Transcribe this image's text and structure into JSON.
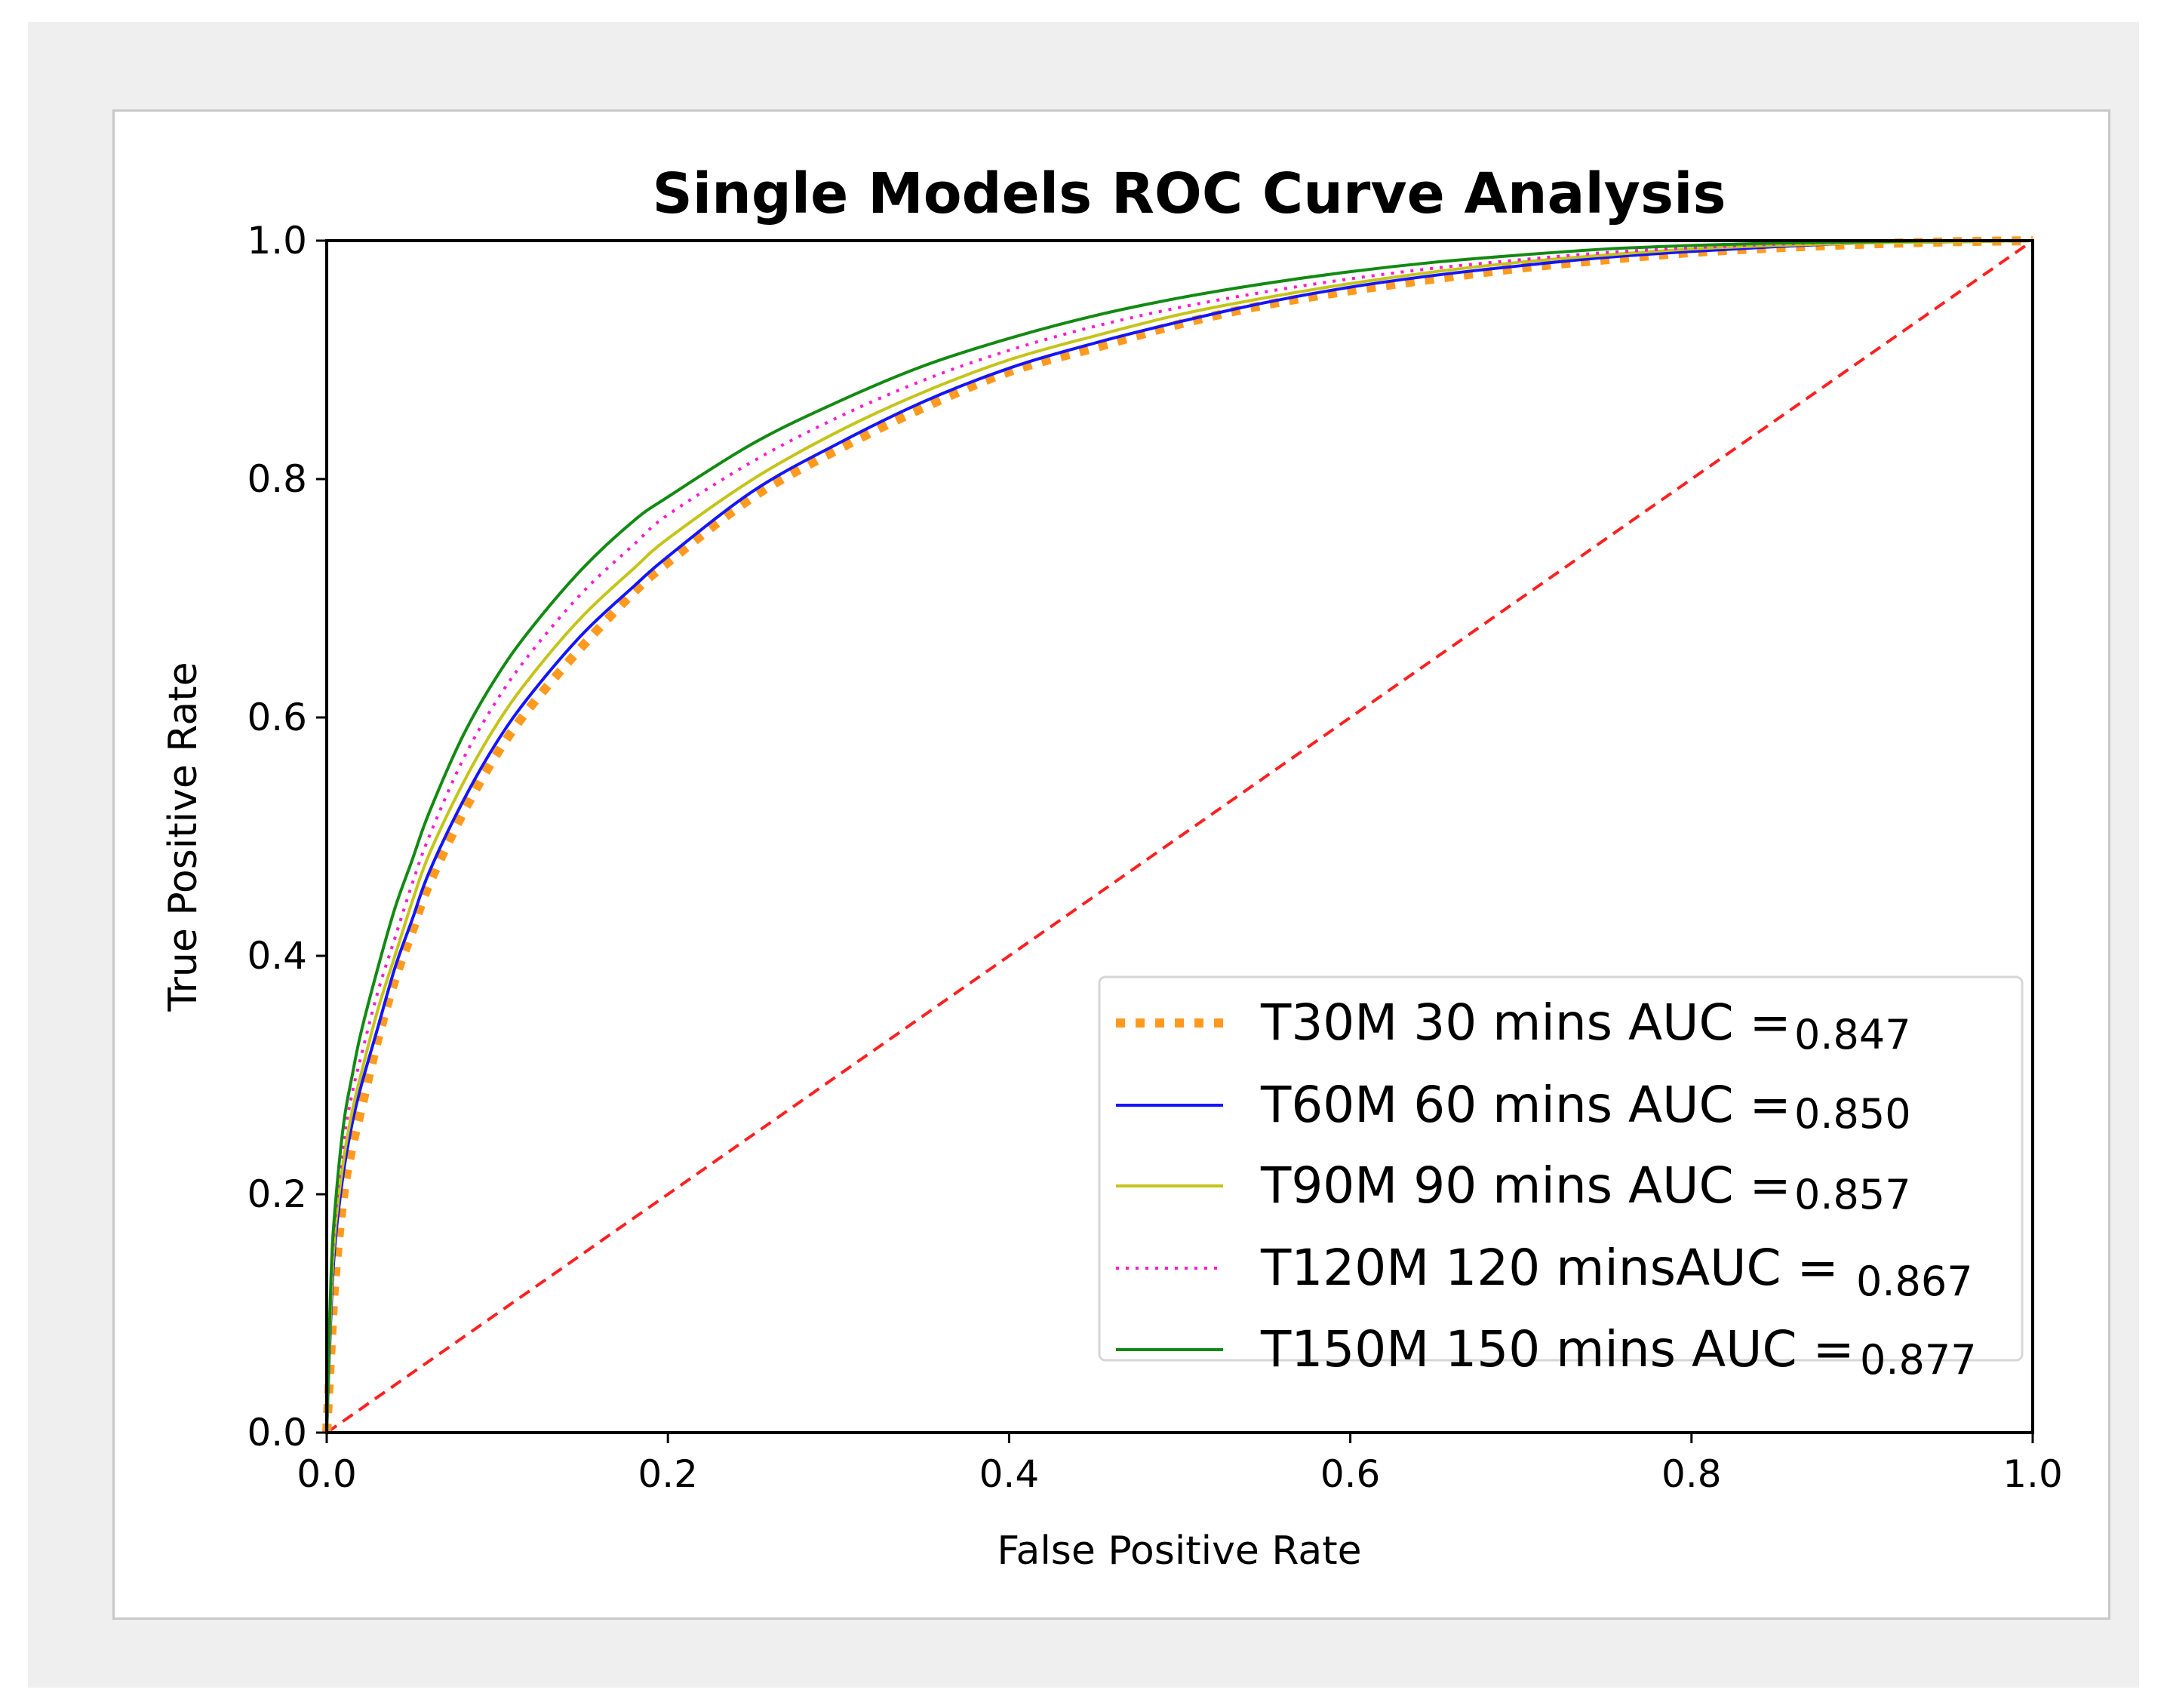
{
  "chart_data": {
    "type": "line",
    "title": "Single Models ROC Curve Analysis",
    "xlabel": "False Positive Rate",
    "ylabel": "True Positive Rate",
    "xlim": [
      0.0,
      1.0
    ],
    "ylim": [
      0.0,
      1.0
    ],
    "xticks": [
      "0.0",
      "0.2",
      "0.4",
      "0.6",
      "0.8",
      "1.0"
    ],
    "yticks": [
      "0.0",
      "0.2",
      "0.4",
      "0.6",
      "0.8",
      "1.0"
    ],
    "grid": false,
    "legend_position": "lower-right",
    "fpr": [
      0,
      0.0025,
      0.005,
      0.01,
      0.015,
      0.02,
      0.03,
      0.04,
      0.05,
      0.06,
      0.08,
      0.1,
      0.12,
      0.15,
      0.18,
      0.2,
      0.25,
      0.3,
      0.35,
      0.4,
      0.45,
      0.5,
      0.55,
      0.6,
      0.65,
      0.7,
      0.75,
      0.8,
      0.85,
      0.9,
      0.95,
      1.0
    ],
    "series": [
      {
        "name": "T30M 30 mins AUC =",
        "auc": "0.847",
        "color": "#ff9a1f",
        "style": "dotted-thick",
        "tpr": [
          0,
          0.07,
          0.13,
          0.2,
          0.24,
          0.27,
          0.33,
          0.38,
          0.42,
          0.46,
          0.52,
          0.57,
          0.61,
          0.66,
          0.705,
          0.73,
          0.785,
          0.825,
          0.86,
          0.89,
          0.91,
          0.93,
          0.946,
          0.958,
          0.968,
          0.977,
          0.984,
          0.99,
          0.994,
          0.997,
          0.999,
          1.0
        ]
      },
      {
        "name": "T60M 60 mins AUC =",
        "auc": "0.850",
        "color": "#1414ff",
        "style": "solid",
        "tpr": [
          0,
          0.1,
          0.16,
          0.22,
          0.26,
          0.29,
          0.34,
          0.39,
          0.43,
          0.47,
          0.53,
          0.58,
          0.62,
          0.67,
          0.71,
          0.735,
          0.79,
          0.83,
          0.865,
          0.893,
          0.914,
          0.932,
          0.948,
          0.961,
          0.971,
          0.979,
          0.986,
          0.991,
          0.995,
          0.998,
          0.999,
          1.0
        ]
      },
      {
        "name": "T90M 90 mins AUC =",
        "auc": "0.857",
        "color": "#c4c41a",
        "style": "solid",
        "tpr": [
          0,
          0.11,
          0.17,
          0.23,
          0.27,
          0.3,
          0.355,
          0.4,
          0.445,
          0.485,
          0.545,
          0.595,
          0.635,
          0.685,
          0.725,
          0.75,
          0.8,
          0.84,
          0.873,
          0.9,
          0.92,
          0.938,
          0.952,
          0.964,
          0.974,
          0.982,
          0.988,
          0.993,
          0.996,
          0.998,
          0.999,
          1.0
        ]
      },
      {
        "name": "T120M 120 minsAUC =",
        "auc": "0.867",
        "color": "#ff1ad2",
        "style": "dotted",
        "tpr": [
          0,
          0.12,
          0.18,
          0.245,
          0.285,
          0.315,
          0.37,
          0.415,
          0.46,
          0.5,
          0.565,
          0.615,
          0.655,
          0.705,
          0.745,
          0.77,
          0.815,
          0.852,
          0.883,
          0.908,
          0.928,
          0.944,
          0.957,
          0.968,
          0.977,
          0.984,
          0.99,
          0.994,
          0.997,
          0.999,
          1.0,
          1.0
        ]
      },
      {
        "name": "T150M 150 mins AUC =",
        "auc": "0.877",
        "color": "#128a12",
        "style": "solid",
        "tpr": [
          0,
          0.13,
          0.19,
          0.26,
          0.3,
          0.335,
          0.39,
          0.44,
          0.48,
          0.52,
          0.585,
          0.635,
          0.675,
          0.725,
          0.765,
          0.785,
          0.83,
          0.865,
          0.895,
          0.918,
          0.937,
          0.952,
          0.964,
          0.974,
          0.982,
          0.988,
          0.993,
          0.996,
          0.998,
          0.999,
          1.0,
          1.0
        ]
      }
    ],
    "reference_line": {
      "from": [
        0,
        0
      ],
      "to": [
        1,
        1
      ],
      "color": "#ff2020",
      "style": "dashed"
    }
  }
}
